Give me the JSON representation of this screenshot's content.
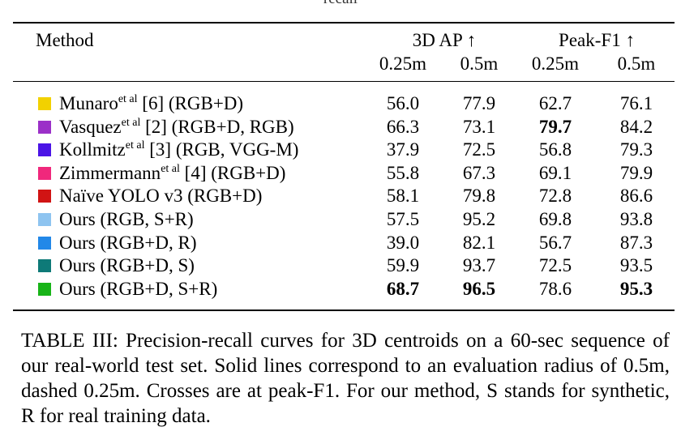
{
  "top_fragment": "recall",
  "table": {
    "headers": {
      "method": "Method",
      "group_ap": "3D AP ↑",
      "group_f1": "Peak-F1 ↑",
      "sub": [
        "0.25m",
        "0.5m",
        "0.25m",
        "0.5m"
      ]
    },
    "rows": [
      {
        "color": "#f2d100",
        "name": "Munaro",
        "sup": "et al",
        "rest": " [6] (RGB+D)",
        "values": [
          "56.0",
          "77.9",
          "62.7",
          "76.1"
        ],
        "bold": [
          false,
          false,
          false,
          false
        ]
      },
      {
        "color": "#9b30c8",
        "name": "Vasquez",
        "sup": "et al",
        "rest": " [2] (RGB+D, RGB)",
        "values": [
          "66.3",
          "73.1",
          "79.7",
          "84.2"
        ],
        "bold": [
          false,
          false,
          true,
          false
        ]
      },
      {
        "color": "#4b14e6",
        "name": "Kollmitz",
        "sup": "et al",
        "rest": " [3] (RGB, VGG-M)",
        "values": [
          "37.9",
          "72.5",
          "56.8",
          "79.3"
        ],
        "bold": [
          false,
          false,
          false,
          false
        ]
      },
      {
        "color": "#f0287c",
        "name": "Zimmermann",
        "sup": "et al",
        "rest": " [4] (RGB+D)",
        "values": [
          "55.8",
          "67.3",
          "69.1",
          "79.9"
        ],
        "bold": [
          false,
          false,
          false,
          false
        ]
      },
      {
        "color": "#d11414",
        "name": "Naïve YOLO v3 (RGB+D)",
        "sup": "",
        "rest": "",
        "values": [
          "58.1",
          "79.8",
          "72.8",
          "86.6"
        ],
        "bold": [
          false,
          false,
          false,
          false
        ]
      },
      {
        "color": "#8ec4f0",
        "name": "Ours (RGB, S+R)",
        "sup": "",
        "rest": "",
        "values": [
          "57.5",
          "95.2",
          "69.8",
          "93.8"
        ],
        "bold": [
          false,
          false,
          false,
          false
        ]
      },
      {
        "color": "#2288e8",
        "name": "Ours (RGB+D, R)",
        "sup": "",
        "rest": "",
        "values": [
          "39.0",
          "82.1",
          "56.7",
          "87.3"
        ],
        "bold": [
          false,
          false,
          false,
          false
        ]
      },
      {
        "color": "#0e7a78",
        "name": "Ours (RGB+D, S)",
        "sup": "",
        "rest": "",
        "values": [
          "59.9",
          "93.7",
          "72.5",
          "93.5"
        ],
        "bold": [
          false,
          false,
          false,
          false
        ]
      },
      {
        "color": "#18b418",
        "name": "Ours (RGB+D, S+R)",
        "sup": "",
        "rest": "",
        "values": [
          "68.7",
          "96.5",
          "78.6",
          "95.3"
        ],
        "bold": [
          true,
          true,
          false,
          true
        ]
      }
    ]
  },
  "caption": "TABLE III: Precision-recall curves for 3D centroids on a 60-sec sequence of our real-world test set. Solid lines correspond to an evaluation radius of 0.5m, dashed 0.25m. Crosses are at peak-F1. For our method, S stands for synthetic, R for real training data."
}
